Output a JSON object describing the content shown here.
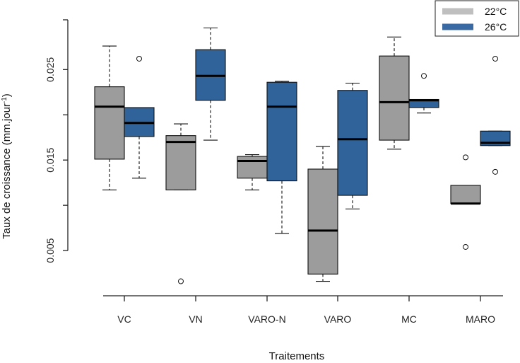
{
  "chart_data": {
    "type": "boxplot",
    "title": "",
    "xlabel": "Traitements",
    "ylabel": {
      "main": "Taux de croissance (mm.jour",
      "superscript": "-1",
      "close": ")"
    },
    "ylim": [
      0.0,
      0.0305
    ],
    "yticks": [
      0.005,
      0.01,
      0.015,
      0.02,
      0.025
    ],
    "ytick_labels": [
      "0.005",
      "",
      "0.015",
      "",
      "0.025"
    ],
    "categories": [
      "VC",
      "VN",
      "VARO-N",
      "VARO",
      "MC",
      "MARO"
    ],
    "legend": {
      "position": "top-right",
      "entries": [
        {
          "label": "22°C",
          "color": "#bfbfbf"
        },
        {
          "label": "26°C",
          "color": "#3a6aa4"
        }
      ]
    },
    "series": [
      {
        "name": "22°C",
        "color": "#9c9c9c",
        "boxes": [
          {
            "category": "VC",
            "whisker_low": 0.0117,
            "q1": 0.0151,
            "median": 0.0209,
            "q3": 0.0231,
            "whisker_high": 0.0276,
            "outliers": []
          },
          {
            "category": "VN",
            "whisker_low": 0.0117,
            "q1": 0.0117,
            "median": 0.017,
            "q3": 0.0177,
            "whisker_high": 0.019,
            "outliers": [
              0.0016
            ]
          },
          {
            "category": "VARO-N",
            "whisker_low": 0.0117,
            "q1": 0.013,
            "median": 0.0149,
            "q3": 0.0154,
            "whisker_high": 0.0156,
            "outliers": []
          },
          {
            "category": "VARO",
            "whisker_low": 0.0016,
            "q1": 0.0024,
            "median": 0.0072,
            "q3": 0.014,
            "whisker_high": 0.0165,
            "outliers": []
          },
          {
            "category": "MC",
            "whisker_low": 0.0162,
            "q1": 0.0172,
            "median": 0.0214,
            "q3": 0.0265,
            "whisker_high": 0.0286,
            "outliers": []
          },
          {
            "category": "MARO",
            "whisker_low": 0.0102,
            "q1": 0.0102,
            "median": 0.0102,
            "q3": 0.0122,
            "whisker_high": 0.0122,
            "outliers": [
              0.0054,
              0.0153
            ]
          }
        ]
      },
      {
        "name": "26°C",
        "color": "#2f6399",
        "boxes": [
          {
            "category": "VC",
            "whisker_low": 0.013,
            "q1": 0.0176,
            "median": 0.0191,
            "q3": 0.0208,
            "whisker_high": 0.0208,
            "outliers": [
              0.0262
            ]
          },
          {
            "category": "VN",
            "whisker_low": 0.0172,
            "q1": 0.0216,
            "median": 0.0243,
            "q3": 0.0272,
            "whisker_high": 0.0296,
            "outliers": []
          },
          {
            "category": "VARO-N",
            "whisker_low": 0.0069,
            "q1": 0.0127,
            "median": 0.0209,
            "q3": 0.0236,
            "whisker_high": 0.0237,
            "outliers": []
          },
          {
            "category": "VARO",
            "whisker_low": 0.0096,
            "q1": 0.0111,
            "median": 0.0173,
            "q3": 0.0227,
            "whisker_high": 0.0235,
            "outliers": []
          },
          {
            "category": "MC",
            "whisker_low": 0.0202,
            "q1": 0.0208,
            "median": 0.0216,
            "q3": 0.0217,
            "whisker_high": 0.0217,
            "outliers": [
              0.0243
            ]
          },
          {
            "category": "MARO",
            "whisker_low": 0.0166,
            "q1": 0.0166,
            "median": 0.0169,
            "q3": 0.0182,
            "whisker_high": 0.0182,
            "outliers": [
              0.0137,
              0.0262
            ]
          }
        ]
      }
    ]
  }
}
